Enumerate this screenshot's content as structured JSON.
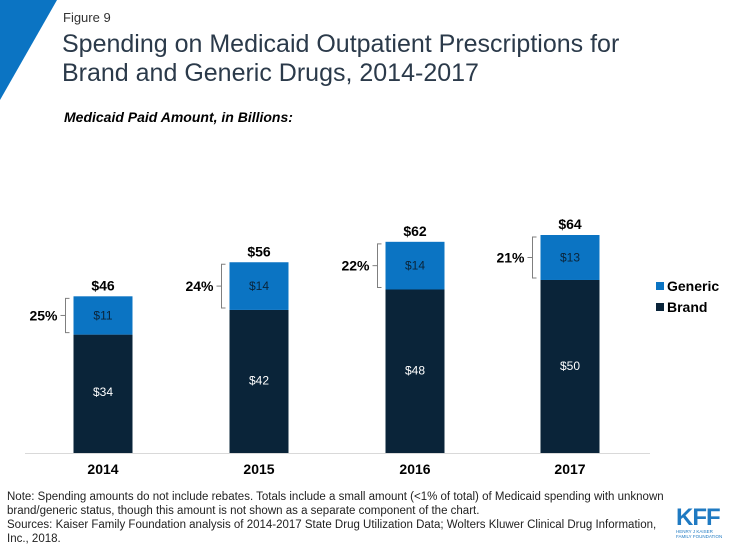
{
  "figure_label": "Figure 9",
  "title": "Spending on Medicaid Outpatient Prescriptions for Brand and Generic Drugs, 2014-2017",
  "title_lines": [
    "Spending on Medicaid Outpatient Prescriptions for",
    "Brand and Generic Drugs, 2014-2017"
  ],
  "subtitle": "Medicaid Paid Amount, in Billions:",
  "colors": {
    "generic": "#0b74c3",
    "brand": "#0a2439",
    "accent": "#0b74c3"
  },
  "chart_data": {
    "type": "bar",
    "stacked": true,
    "title": "Spending on Medicaid Outpatient Prescriptions for Brand and Generic Drugs, 2014-2017",
    "subtitle": "Medicaid Paid Amount, in Billions:",
    "xlabel": "",
    "ylabel": "",
    "categories": [
      "2014",
      "2015",
      "2016",
      "2017"
    ],
    "series": [
      {
        "name": "Brand",
        "values": [
          34,
          42,
          48,
          50
        ],
        "labels": [
          "$34",
          "$42",
          "$48",
          "$50"
        ],
        "color": "#0a2439"
      },
      {
        "name": "Generic",
        "values": [
          11,
          14,
          14,
          13
        ],
        "labels": [
          "$11",
          "$14",
          "$14",
          "$13"
        ],
        "color": "#0b74c3"
      }
    ],
    "totals": [
      46,
      56,
      62,
      64
    ],
    "total_labels": [
      "$46",
      "$56",
      "$62",
      "$64"
    ],
    "generic_share_labels": [
      "25%",
      "24%",
      "22%",
      "21%"
    ],
    "legend": [
      "Generic",
      "Brand"
    ],
    "legend_position": "right",
    "ylim": [
      0,
      70
    ],
    "grid": false
  },
  "note": "Note: Spending amounts do not include rebates. Totals include a small amount (<1% of total) of Medicaid spending with unknown brand/generic status, though this amount is not shown as a separate component of the chart.",
  "sources": "Sources: Kaiser Family Foundation analysis of 2014-2017 State Drug Utilization Data; Wolters Kluwer Clinical Drug Information, Inc., 2018.",
  "logo": {
    "main": "KFF",
    "sub1": "HENRY J KAISER",
    "sub2": "FAMILY FOUNDATION"
  }
}
